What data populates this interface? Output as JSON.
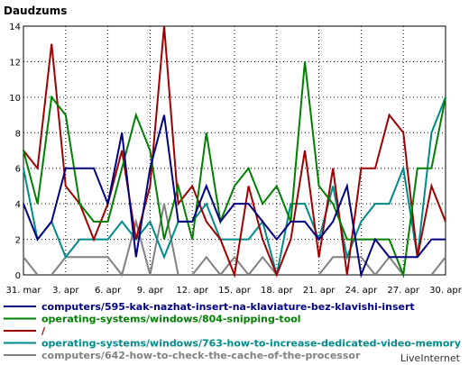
{
  "chart_data": {
    "type": "line",
    "title": "Daudzums",
    "ylim": [
      0,
      14
    ],
    "yticks": [
      0,
      2,
      4,
      6,
      8,
      10,
      12,
      14
    ],
    "categories": [
      "31. mar",
      "1. apr",
      "2. apr",
      "3. apr",
      "4. apr",
      "5. apr",
      "6. apr",
      "7. apr",
      "8. apr",
      "9. apr",
      "10. apr",
      "11. apr",
      "12. apr",
      "13. apr",
      "14. apr",
      "15. apr",
      "16. apr",
      "17. apr",
      "18. apr",
      "19. apr",
      "20. apr",
      "21. apr",
      "22. apr",
      "23. apr",
      "24. apr",
      "25. apr",
      "26. apr",
      "27. apr",
      "28. apr",
      "29. apr",
      "30. apr"
    ],
    "xtick_labels": [
      "31. mar",
      "3. apr",
      "6. apr",
      "9. apr",
      "12. apr",
      "15. apr",
      "18. apr",
      "21. apr",
      "24. apr",
      "27. apr",
      "30. apr"
    ],
    "xtick_indices": [
      0,
      3,
      6,
      9,
      12,
      15,
      18,
      21,
      24,
      27,
      30
    ],
    "grid": true,
    "legend_placement": "bottom",
    "series": [
      {
        "name": "computers/595-kak-nazhat-insert-na-klaviature-bez-klavishi-insert",
        "color": "#000080",
        "values": [
          4,
          2,
          3,
          6,
          6,
          6,
          4,
          8,
          1,
          6,
          9,
          3,
          3,
          5,
          3,
          4,
          4,
          3,
          2,
          3,
          3,
          2,
          3,
          5,
          0,
          2,
          1,
          1,
          1,
          2,
          2
        ]
      },
      {
        "name": "operating-systems/windows/804-snipping-tool",
        "color": "#008000",
        "values": [
          7,
          4,
          10,
          9,
          4,
          3,
          3,
          6,
          9,
          7,
          2,
          5,
          2,
          8,
          3,
          5,
          6,
          4,
          5,
          3,
          12,
          5,
          4,
          2,
          2,
          2,
          2,
          0,
          6,
          6,
          10
        ]
      },
      {
        "name": "/",
        "color": "#a00000",
        "values": [
          7,
          6,
          13,
          5,
          4,
          2,
          4,
          7,
          2,
          5,
          14,
          4,
          5,
          3,
          2,
          0,
          5,
          2,
          0,
          2,
          7,
          1,
          6,
          0,
          6,
          6,
          9,
          8,
          1,
          5,
          3
        ]
      },
      {
        "name": "operating-systems/windows/763-how-to-increase-dedicated-video-memory",
        "color": "#008b8b",
        "values": [
          6,
          2,
          3,
          1,
          2,
          2,
          2,
          3,
          2,
          3,
          1,
          3,
          3,
          4,
          2,
          2,
          2,
          3,
          0,
          4,
          4,
          2,
          5,
          1,
          3,
          4,
          4,
          6,
          1,
          8,
          10
        ]
      },
      {
        "name": "computers/642-how-to-check-the-cache-of-the-processor",
        "color": "#808080",
        "values": [
          1,
          0,
          0,
          1,
          1,
          1,
          1,
          0,
          3,
          0,
          4,
          0,
          0,
          1,
          0,
          1,
          0,
          1,
          0,
          0,
          0,
          0,
          1,
          1,
          1,
          0,
          1,
          0,
          0,
          0,
          1
        ]
      }
    ]
  },
  "brand": "LiveInternet"
}
